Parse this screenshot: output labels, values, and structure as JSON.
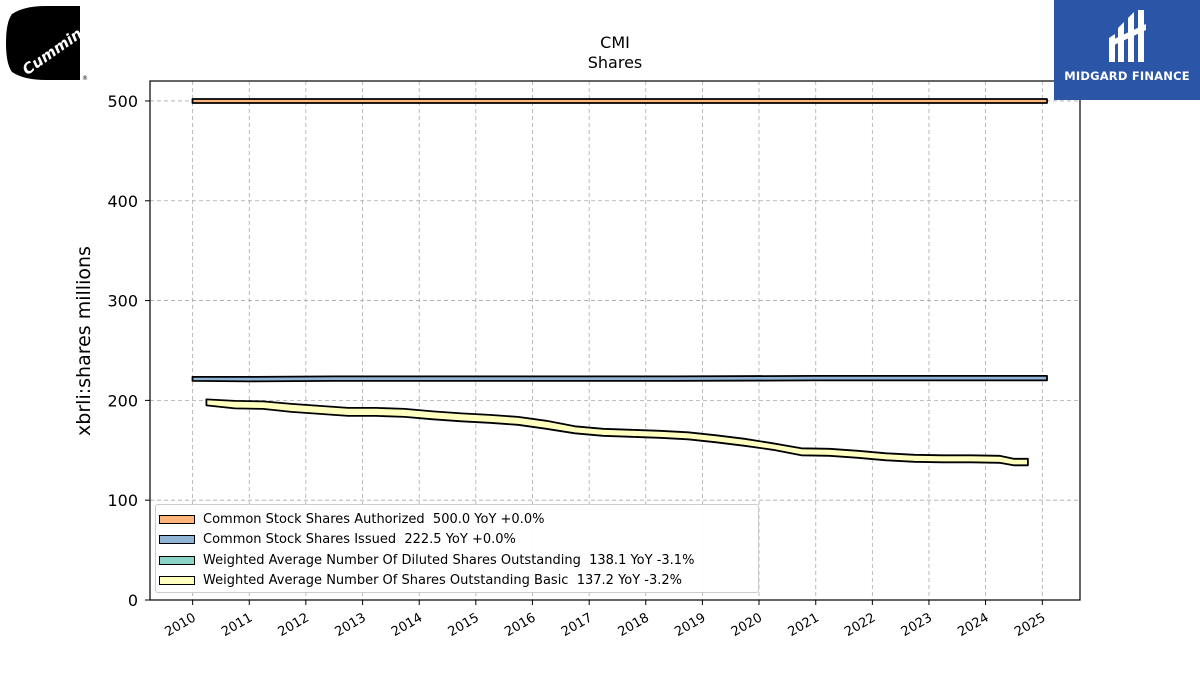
{
  "chart_data": {
    "type": "area",
    "title": "CMI",
    "subtitle": "Shares",
    "ylabel": "xbrli:shares millions",
    "xlabel": "",
    "ylim": [
      0,
      520
    ],
    "yticks": [
      "0",
      "100",
      "200",
      "300",
      "400",
      "500"
    ],
    "xticks": [
      "2010",
      "2011",
      "2012",
      "2013",
      "2014",
      "2015",
      "2016",
      "2017",
      "2018",
      "2019",
      "2020",
      "2021",
      "2022",
      "2023",
      "2024",
      "2025"
    ],
    "grid": true,
    "legend_position": "lower-left",
    "series": [
      {
        "name": "Common Stock Shares Authorized",
        "legend": "Common Stock Shares Authorized  500.0 YoY +0.0%",
        "color": "#fdb57a",
        "x": [
          "2009-12-31",
          "2025-01-31"
        ],
        "low": [
          498,
          498
        ],
        "high": [
          502,
          502
        ]
      },
      {
        "name": "Common Stock Shares Issued",
        "legend": "Common Stock Shares Issued  222.5 YoY +0.0%",
        "color": "#8fb4d6",
        "x": [
          "2009-12-31",
          "2011-01-01",
          "2012-06-30",
          "2015-06-30",
          "2018-06-30",
          "2021-01-01",
          "2025-01-31"
        ],
        "low": [
          219.5,
          219,
          219.5,
          219.5,
          219.5,
          220,
          220
        ],
        "high": [
          223.5,
          223.5,
          224,
          224,
          224,
          224.5,
          224.5
        ]
      },
      {
        "name": "Weighted Average Number Of Diluted Shares Outstanding",
        "legend": "Weighted Average Number Of Diluted Shares Outstanding  138.1 YoY -3.1%",
        "color": "#8cd3c7",
        "x": [],
        "values": []
      },
      {
        "name": "Weighted Average Number Of Shares Outstanding Basic",
        "legend": "Weighted Average Number Of Shares Outstanding Basic  137.2 YoY -3.2%",
        "color": "#ffffbf",
        "x": [
          "2010-03-31",
          "2010-09-30",
          "2011-03-31",
          "2011-09-30",
          "2012-03-31",
          "2012-09-30",
          "2013-03-31",
          "2013-09-30",
          "2014-03-31",
          "2014-09-30",
          "2015-03-31",
          "2015-09-30",
          "2016-03-31",
          "2016-09-30",
          "2017-03-31",
          "2017-09-30",
          "2018-03-31",
          "2018-09-30",
          "2019-03-31",
          "2019-09-30",
          "2020-03-31",
          "2020-09-30",
          "2021-03-31",
          "2021-09-30",
          "2022-03-31",
          "2022-09-30",
          "2023-03-31",
          "2023-09-30",
          "2024-03-31",
          "2024-06-30",
          "2024-09-30"
        ],
        "low": [
          195,
          192,
          191.5,
          188.5,
          186.5,
          184.5,
          184.5,
          183.5,
          181,
          179,
          177.5,
          175.5,
          171.5,
          167,
          164.5,
          163.5,
          162.5,
          161,
          158,
          154.5,
          150.5,
          145,
          144.5,
          142.5,
          140,
          138.5,
          138,
          138,
          137.5,
          135,
          135
        ],
        "high": [
          201,
          199.5,
          199,
          196.5,
          194.5,
          192.5,
          192.5,
          191.5,
          189,
          187,
          185.5,
          183.5,
          179.5,
          174,
          171.5,
          170.5,
          169.5,
          168,
          165,
          161.5,
          157,
          152,
          151.5,
          149.5,
          147,
          145.5,
          145,
          145,
          144.5,
          141.5,
          141.5
        ]
      }
    ]
  },
  "logos": {
    "left_text": "Cummins",
    "right_text": "MIDGARD FINANCE",
    "right_bg": "#2b55a6",
    "left_color": "#000000"
  }
}
